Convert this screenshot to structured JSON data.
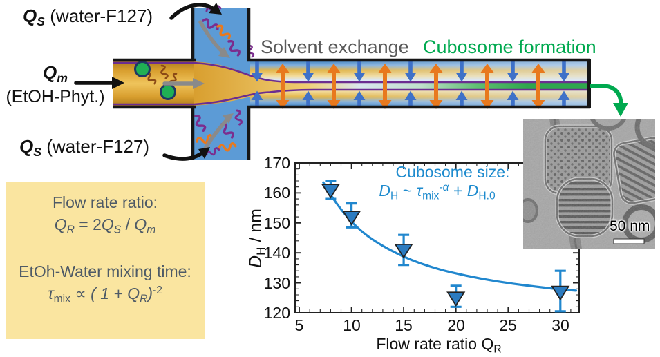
{
  "diagram": {
    "labels": {
      "qs_top": [
        {
          "t": "Q",
          "b": 1,
          "i": 1
        },
        {
          "t": "S",
          "b": 1,
          "i": 1,
          "sub": 1
        },
        {
          "t": " (water-F127)"
        }
      ],
      "qm_line1": [
        {
          "t": "Q",
          "b": 1,
          "i": 1
        },
        {
          "t": "m",
          "b": 1,
          "i": 1,
          "sub": 1
        }
      ],
      "qm_line2": "(EtOH-Phyt.)",
      "qs_bottom": [
        {
          "t": "Q",
          "b": 1,
          "i": 1
        },
        {
          "t": "S",
          "b": 1,
          "i": 1,
          "sub": 1
        },
        {
          "t": " (water-F127)"
        }
      ],
      "solvent_exchange": "Solvent exchange",
      "cubosome_formation": "Cubosome formation"
    },
    "colors": {
      "channel_blue": "#5C9BD6",
      "inlet_gold": "#E9BE54",
      "stream_green": "#2FA64E",
      "water_arrow_blue": "#3E71C8",
      "ethanol_arrow_orange": "#E8791E",
      "boundary_purple": "#6B2D90",
      "solvent_text_gray": "#595959",
      "cubosome_text_green": "#00A94F",
      "particle_green": "#1FAF54",
      "lipid_brown": "#8B4A16"
    }
  },
  "info_box": {
    "bg": "#FAE5A0",
    "title1": "Flow rate ratio:",
    "formula1": [
      {
        "t": "Q",
        "i": 1
      },
      {
        "t": "R",
        "i": 1,
        "sub": 1
      },
      {
        "t": " = 2"
      },
      {
        "t": "Q",
        "i": 1
      },
      {
        "t": "S",
        "i": 1,
        "sub": 1
      },
      {
        "t": " / "
      },
      {
        "t": "Q",
        "i": 1
      },
      {
        "t": "m",
        "i": 1,
        "sub": 1
      }
    ],
    "title2": "EtOh-Water mixing time:",
    "formula2": [
      {
        "t": "τ",
        "i": 1
      },
      {
        "t": "mix",
        "sub": 1
      },
      {
        "t": " ∝ "
      },
      {
        "t": "( 1 + Q",
        "i": 1
      },
      {
        "t": "R",
        "i": 1,
        "sub": 1
      },
      {
        "t": ")",
        "i": 1
      },
      {
        "t": "-2",
        "sup": 1
      }
    ]
  },
  "chart_data": {
    "type": "scatter",
    "xlabel": "Flow rate ratio QR",
    "xlabel_rich": [
      {
        "t": "Flow rate ratio Q"
      },
      {
        "t": "R",
        "sub": 1
      }
    ],
    "ylabel": "DH / nm",
    "ylabel_rich": [
      {
        "t": "D",
        "i": 1
      },
      {
        "t": "H",
        "sub": 1
      },
      {
        "t": " / nm"
      }
    ],
    "xlim": [
      4.6,
      31.8
    ],
    "ylim": [
      120,
      170
    ],
    "xticks": [
      5,
      10,
      15,
      20,
      25,
      30
    ],
    "yticks": [
      120,
      130,
      140,
      150,
      160,
      170
    ],
    "x_minor_step": 1,
    "y_minor_step": 2,
    "x": [
      8,
      10,
      15,
      20,
      30
    ],
    "y": [
      161,
      152,
      141,
      125,
      127
    ],
    "y_err_up": [
      3,
      4.5,
      5,
      4,
      7
    ],
    "y_err_down": [
      3,
      3.5,
      5,
      3,
      6.5
    ],
    "marker": "triangle-down",
    "marker_color": "#2B7BC0",
    "line_color": "#2187CE",
    "fit_x": [
      7.3,
      8,
      10,
      12,
      15,
      18,
      21,
      24,
      27,
      30,
      31.5
    ],
    "fit_y": [
      163.5,
      159,
      150.1,
      144.2,
      138.5,
      134.8,
      132.3,
      130.4,
      129.0,
      127.8,
      127.4
    ],
    "annotation1": "Cubosome size:",
    "annotation2_rich": [
      {
        "t": "D",
        "i": 1
      },
      {
        "t": "H",
        "sub": 1
      },
      {
        "t": " ~ "
      },
      {
        "t": "τ",
        "i": 1
      },
      {
        "t": "mix",
        "sub": 1
      },
      {
        "t": "-α",
        "sup": 1,
        "i": 1
      },
      {
        "t": " + "
      },
      {
        "t": "D",
        "i": 1
      },
      {
        "t": "H.0",
        "sub": 1
      }
    ],
    "annotation_color": "#1E8BCE",
    "grid": false,
    "legend": null
  },
  "tem": {
    "scale_bar_label": "50 nm"
  }
}
